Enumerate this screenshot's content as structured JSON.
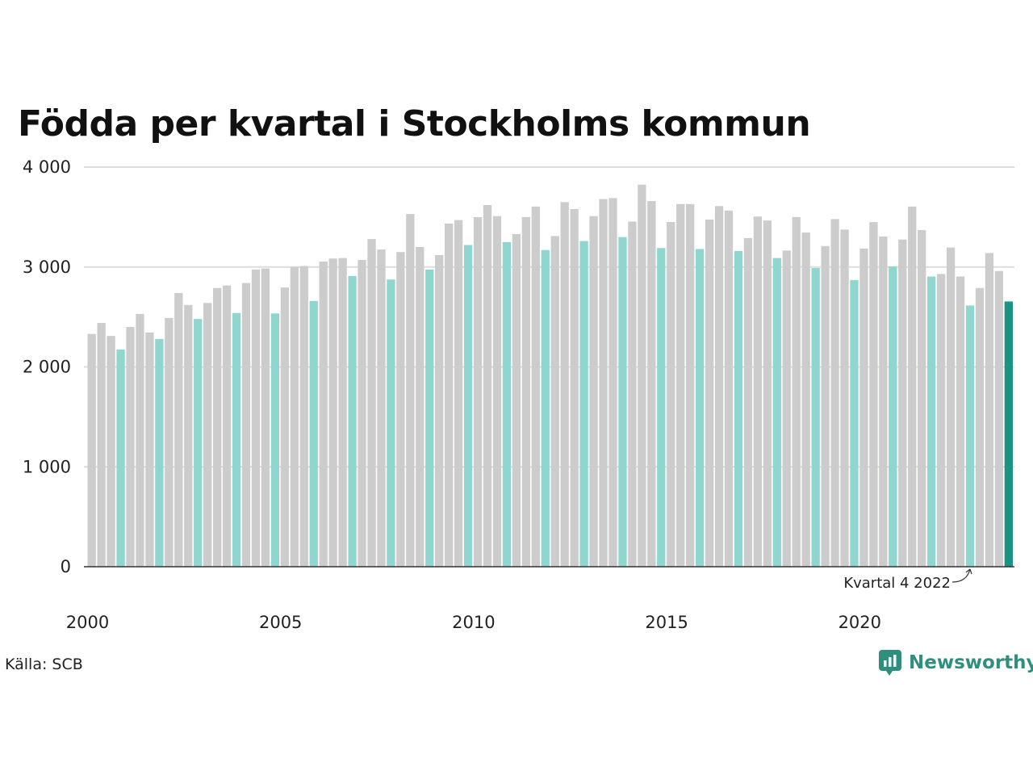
{
  "title": "Födda per kvartal i Stockholms kommun",
  "source": "Källa: SCB",
  "brand": {
    "name": "Newsworthy",
    "icon": "newsworthy-logo-icon"
  },
  "colors": {
    "bar": "#cccccc",
    "highlight_quarter": "#8fd6ce",
    "latest": "#1a9485",
    "grid": "#dddddd",
    "axis": "#333333",
    "brand": "#2f8f7f"
  },
  "annotation": {
    "text": "Kvartal 4 2022"
  },
  "chart_data": {
    "type": "bar",
    "title": "Födda per kvartal i Stockholms kommun",
    "xlabel": "",
    "ylabel": "",
    "ylim": [
      0,
      4000
    ],
    "yticks": [
      0,
      1000,
      2000,
      3000,
      4000
    ],
    "ytick_labels": [
      "0",
      "1 000",
      "2 000",
      "3 000",
      "4 000"
    ],
    "xtick_labels": [
      "2000",
      "2005",
      "2010",
      "2015",
      "2020"
    ],
    "x_start": {
      "year": 2000,
      "quarter": 1
    },
    "grid": true,
    "highlighted_quarter": 4,
    "values": [
      2330,
      2440,
      2310,
      2175,
      2400,
      2530,
      2345,
      2280,
      2490,
      2740,
      2620,
      2480,
      2640,
      2790,
      2815,
      2540,
      2840,
      2975,
      2985,
      2535,
      2795,
      3000,
      3010,
      2660,
      3055,
      3085,
      3090,
      2910,
      3070,
      3280,
      3175,
      2875,
      3150,
      3530,
      3200,
      2975,
      3120,
      3435,
      3470,
      3220,
      3500,
      3620,
      3510,
      3250,
      3330,
      3500,
      3605,
      3170,
      3310,
      3650,
      3580,
      3260,
      3510,
      3680,
      3690,
      3300,
      3455,
      3825,
      3660,
      3190,
      3450,
      3630,
      3630,
      3180,
      3475,
      3610,
      3565,
      3160,
      3290,
      3505,
      3465,
      3090,
      3165,
      3500,
      3345,
      2990,
      3210,
      3480,
      3375,
      2870,
      3185,
      3450,
      3305,
      3005,
      3275,
      3605,
      3370,
      2905,
      2930,
      3195,
      2905,
      2615,
      2790,
      3140,
      2960,
      2655
    ]
  }
}
